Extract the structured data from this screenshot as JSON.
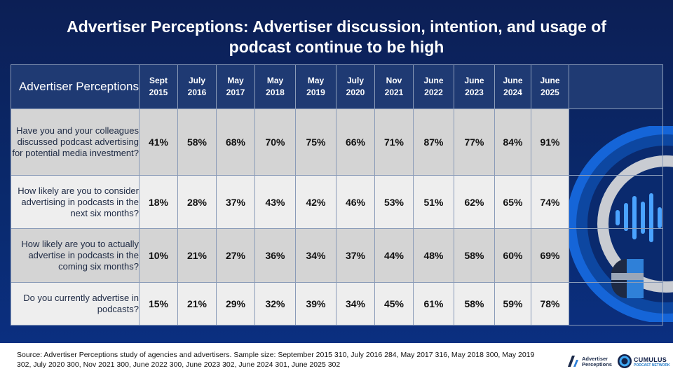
{
  "title": "Advertiser Perceptions: Advertiser discussion, intention, and usage of podcast continue to be high",
  "chart_data": {
    "type": "table",
    "corner_label": "Advertiser Perceptions",
    "columns": [
      {
        "line1": "Sept",
        "line2": "2015"
      },
      {
        "line1": "July",
        "line2": "2016"
      },
      {
        "line1": "May",
        "line2": "2017"
      },
      {
        "line1": "May",
        "line2": "2018"
      },
      {
        "line1": "May",
        "line2": "2019"
      },
      {
        "line1": "July",
        "line2": "2020"
      },
      {
        "line1": "Nov",
        "line2": "2021"
      },
      {
        "line1": "June",
        "line2": "2022"
      },
      {
        "line1": "June",
        "line2": "2023"
      },
      {
        "line1": "June",
        "line2": "2024"
      },
      {
        "line1": "June",
        "line2": "2025"
      }
    ],
    "rows": [
      {
        "question": "Have you and your colleagues discussed podcast advertising for potential media investment?",
        "values": [
          "41%",
          "58%",
          "68%",
          "70%",
          "75%",
          "66%",
          "71%",
          "87%",
          "77%",
          "84%",
          "91%"
        ]
      },
      {
        "question": "How likely are you to consider advertising in podcasts in the next six months?",
        "values": [
          "18%",
          "28%",
          "37%",
          "43%",
          "42%",
          "46%",
          "53%",
          "51%",
          "62%",
          "65%",
          "74%"
        ]
      },
      {
        "question": "How likely are you to actually advertise in podcasts in the coming six months?",
        "values": [
          "10%",
          "21%",
          "27%",
          "36%",
          "34%",
          "37%",
          "44%",
          "48%",
          "58%",
          "60%",
          "69%"
        ]
      },
      {
        "question": "Do you currently advertise in podcasts?",
        "values": [
          "15%",
          "21%",
          "29%",
          "32%",
          "39%",
          "34%",
          "45%",
          "61%",
          "58%",
          "59%",
          "78%"
        ]
      }
    ]
  },
  "footer": {
    "source": "Source: Advertiser Perceptions study of agencies and advertisers. Sample size: September 2015 310, July 2016 284, May 2017 316, May 2018 300, May 2019 302, July 2020 300, Nov 2021 300, June 2022 300, June 2023 302, June 2024 301, June 2025 302"
  },
  "logos": {
    "ap_line1": "Advertiser",
    "ap_line2": "Perceptions",
    "cumulus_name": "CUMULUS",
    "cumulus_sub": "PODCAST NETWORK"
  }
}
